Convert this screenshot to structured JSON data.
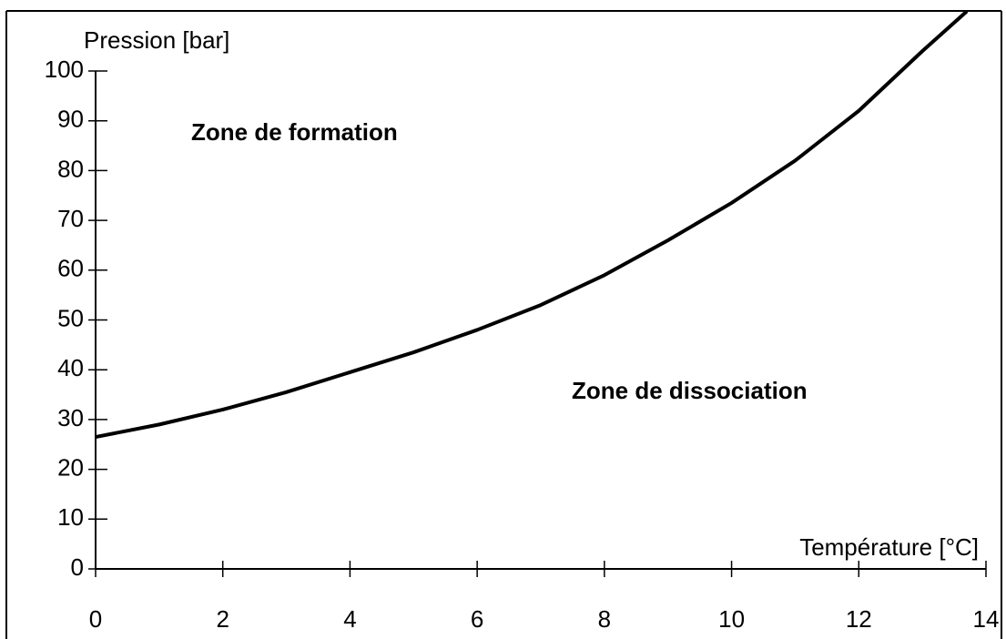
{
  "chart_data": {
    "type": "line",
    "y_label": "Pression [bar]",
    "x_label": "Température [°C]",
    "annotations": [
      "Zone de formation",
      "Zone de dissociation"
    ],
    "x": [
      0,
      1,
      2,
      3,
      4,
      5,
      6,
      7,
      8,
      9,
      10,
      11,
      12,
      13,
      13.7
    ],
    "series": [
      {
        "color": "#000000",
        "values": [
          26.5,
          29,
          32,
          35.5,
          39.5,
          43.5,
          48,
          53,
          59,
          66,
          73.5,
          82,
          92,
          104,
          112
        ]
      }
    ],
    "xlim": [
      0,
      14
    ],
    "xticks": [
      0,
      2,
      4,
      6,
      8,
      10,
      12,
      14
    ],
    "ylim": [
      0,
      100
    ],
    "yticks": [
      0,
      10,
      20,
      30,
      40,
      50,
      60,
      70,
      80,
      90,
      100
    ],
    "grid": false
  }
}
